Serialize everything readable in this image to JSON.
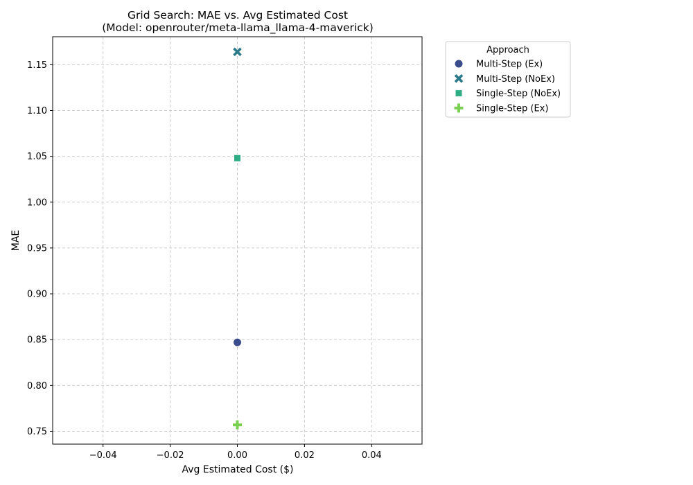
{
  "chart_data": {
    "type": "scatter",
    "title": "Grid Search: MAE vs. Avg Estimated Cost",
    "subtitle": "(Model: openrouter/meta-llama_llama-4-maverick)",
    "xlabel": "Avg Estimated Cost ($)",
    "ylabel": "MAE",
    "xlim": [
      -0.055,
      0.055
    ],
    "ylim": [
      0.736,
      1.1805
    ],
    "xticks": [
      -0.04,
      -0.02,
      0.0,
      0.02,
      0.04
    ],
    "xtick_labels": [
      "−0.04",
      "−0.02",
      "0.00",
      "0.02",
      "0.04"
    ],
    "yticks": [
      0.75,
      0.8,
      0.85,
      0.9,
      0.95,
      1.0,
      1.05,
      1.1,
      1.15
    ],
    "ytick_labels": [
      "0.75",
      "0.80",
      "0.85",
      "0.90",
      "0.95",
      "1.00",
      "1.05",
      "1.10",
      "1.15"
    ],
    "grid": true,
    "legend": {
      "title": "Approach",
      "placement": "outside-upper-right"
    },
    "series": [
      {
        "name": "Multi-Step (Ex)",
        "marker": "circle",
        "color": "#3b4c8c",
        "points": [
          {
            "x": 0.0,
            "y": 0.847
          }
        ]
      },
      {
        "name": "Multi-Step (NoEx)",
        "marker": "x",
        "color": "#2c7a8a",
        "points": [
          {
            "x": 0.0,
            "y": 1.164
          }
        ]
      },
      {
        "name": "Single-Step (NoEx)",
        "marker": "square",
        "color": "#2fae86",
        "points": [
          {
            "x": 0.0,
            "y": 1.048
          }
        ]
      },
      {
        "name": "Single-Step (Ex)",
        "marker": "plus",
        "color": "#7ad151",
        "points": [
          {
            "x": 0.0,
            "y": 0.757
          }
        ]
      }
    ]
  }
}
